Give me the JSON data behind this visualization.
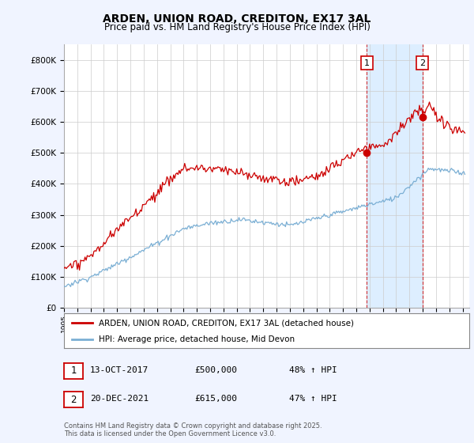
{
  "title_line1": "ARDEN, UNION ROAD, CREDITON, EX17 3AL",
  "title_line2": "Price paid vs. HM Land Registry's House Price Index (HPI)",
  "ylim": [
    0,
    850000
  ],
  "yticks": [
    0,
    100000,
    200000,
    300000,
    400000,
    500000,
    600000,
    700000,
    800000
  ],
  "ytick_labels": [
    "£0",
    "£100K",
    "£200K",
    "£300K",
    "£400K",
    "£500K",
    "£600K",
    "£700K",
    "£800K"
  ],
  "xlim_start": 1995.0,
  "xlim_end": 2025.5,
  "xticks": [
    1995,
    1996,
    1997,
    1998,
    1999,
    2000,
    2001,
    2002,
    2003,
    2004,
    2005,
    2006,
    2007,
    2008,
    2009,
    2010,
    2011,
    2012,
    2013,
    2014,
    2015,
    2016,
    2017,
    2018,
    2019,
    2020,
    2021,
    2022,
    2023,
    2024,
    2025
  ],
  "red_line_color": "#cc0000",
  "blue_line_color": "#7bafd4",
  "shade_color": "#ddeeff",
  "marker1_x": 2017.79,
  "marker1_y": 500000,
  "marker2_x": 2021.97,
  "marker2_y": 615000,
  "vline1_x": 2017.79,
  "vline2_x": 2021.97,
  "legend_red_label": "ARDEN, UNION ROAD, CREDITON, EX17 3AL (detached house)",
  "legend_blue_label": "HPI: Average price, detached house, Mid Devon",
  "table_rows": [
    {
      "num": "1",
      "date": "13-OCT-2017",
      "price": "£500,000",
      "change": "48% ↑ HPI"
    },
    {
      "num": "2",
      "date": "20-DEC-2021",
      "price": "£615,000",
      "change": "47% ↑ HPI"
    }
  ],
  "footnote": "Contains HM Land Registry data © Crown copyright and database right 2025.\nThis data is licensed under the Open Government Licence v3.0.",
  "background_color": "#f0f4ff",
  "plot_bg_color": "#ffffff",
  "grid_color": "#cccccc",
  "red_noise_scale": 8000,
  "blue_noise_scale": 4000
}
